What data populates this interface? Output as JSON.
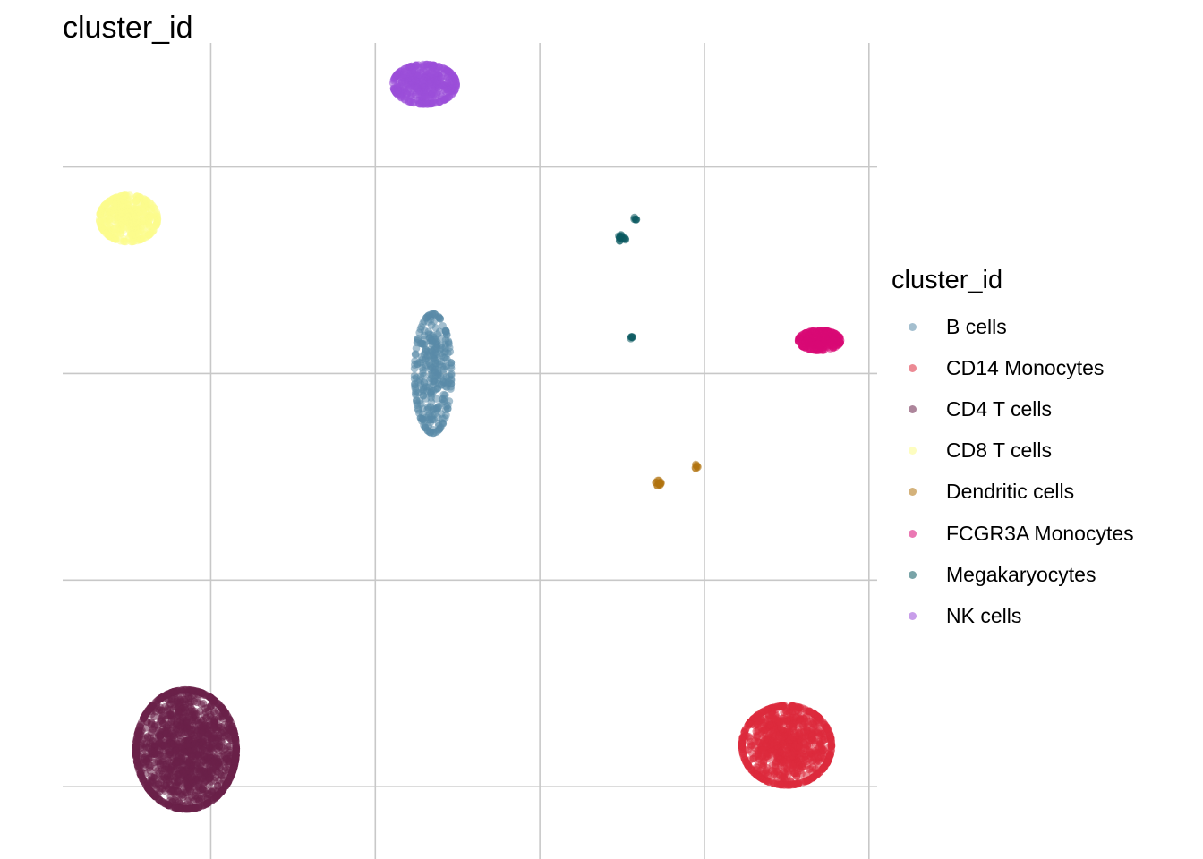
{
  "chart_data": {
    "type": "scatter",
    "title": "cluster_id",
    "xlabel": "",
    "ylabel": "",
    "xlim": [
      -0.9,
      4.05
    ],
    "ylim": [
      -0.35,
      3.6
    ],
    "grid": true,
    "legend_title": "cluster_id",
    "legend_position": "right",
    "series": [
      {
        "name": "B cells",
        "color": "#5a8aa8",
        "clusters": [
          {
            "x": 1.35,
            "y": 2.0,
            "sx": 0.07,
            "sy": 0.18,
            "n": 320
          }
        ]
      },
      {
        "name": "CD14 Monocytes",
        "color": "#dc2a3c",
        "clusters": [
          {
            "x": 3.5,
            "y": 0.2,
            "sx": 0.17,
            "sy": 0.12,
            "n": 900
          }
        ]
      },
      {
        "name": "CD4 T cells",
        "color": "#6a2149",
        "clusters": [
          {
            "x": -0.15,
            "y": 0.18,
            "sx": 0.19,
            "sy": 0.18,
            "n": 1400
          }
        ]
      },
      {
        "name": "CD8 T cells",
        "color": "#fbfb8c",
        "clusters": [
          {
            "x": -0.5,
            "y": 2.75,
            "sx": 0.11,
            "sy": 0.07,
            "n": 400
          }
        ]
      },
      {
        "name": "Dendritic cells",
        "color": "#b0720e",
        "clusters": [
          {
            "x": 2.72,
            "y": 1.47,
            "sx": 0.01,
            "sy": 0.008,
            "n": 14
          },
          {
            "x": 2.95,
            "y": 1.55,
            "sx": 0.006,
            "sy": 0.006,
            "n": 6
          }
        ]
      },
      {
        "name": "FCGR3A Monocytes",
        "color": "#d90a74",
        "clusters": [
          {
            "x": 3.7,
            "y": 2.16,
            "sx": 0.08,
            "sy": 0.03,
            "n": 260
          }
        ]
      },
      {
        "name": "Megakaryocytes",
        "color": "#0b5a61",
        "clusters": [
          {
            "x": 2.5,
            "y": 2.66,
            "sx": 0.015,
            "sy": 0.015,
            "n": 14
          },
          {
            "x": 2.58,
            "y": 2.75,
            "sx": 0.005,
            "sy": 0.005,
            "n": 5
          },
          {
            "x": 2.56,
            "y": 2.17,
            "sx": 0.005,
            "sy": 0.005,
            "n": 5
          }
        ]
      },
      {
        "name": "NK cells",
        "color": "#9b4fd8",
        "clusters": [
          {
            "x": 1.3,
            "y": 3.4,
            "sx": 0.12,
            "sy": 0.06,
            "n": 420
          }
        ]
      }
    ]
  }
}
